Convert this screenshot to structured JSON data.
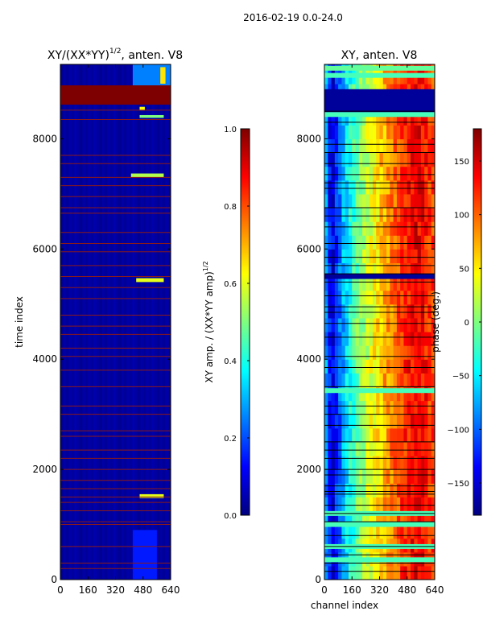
{
  "suptitle": "2016-02-19 0.0-24.0",
  "colors": {
    "jet": [
      "#00007f",
      "#0000ff",
      "#007fff",
      "#00ffff",
      "#7fff7f",
      "#ffff00",
      "#ff7f00",
      "#ff0000",
      "#7f0000"
    ],
    "gap_line": "#8b1a1a",
    "black": "#000000"
  },
  "chart_data": [
    {
      "type": "heatmap",
      "title_main": "XY/(XX*YY)",
      "title_exp": "1/2",
      "title_suffix": ", anten. V8",
      "xlabel": "",
      "ylabel": "time index",
      "xlim": [
        0,
        640
      ],
      "ylim": [
        0,
        9350
      ],
      "xticks": [
        0,
        160,
        320,
        480,
        640
      ],
      "xtick_labels": [
        "0",
        "160",
        "320",
        "480",
        "640"
      ],
      "yticks": [
        0,
        2000,
        4000,
        6000,
        8000
      ],
      "ytick_labels": [
        "0",
        "2000",
        "4000",
        "6000",
        "8000"
      ],
      "colorbar": {
        "label_main": "XY amp. / (XX*YY amp)",
        "label_exp": "1/2",
        "range": [
          0,
          1
        ],
        "ticks": [
          0.0,
          0.2,
          0.4,
          0.6,
          0.8,
          1.0
        ],
        "tick_labels": [
          "0.0",
          "0.2",
          "0.4",
          "0.6",
          "0.8",
          "1.0"
        ]
      },
      "background_value": 0.02,
      "flagged_block": {
        "t0": 8620,
        "t1": 8970,
        "value": 1.0
      },
      "bright_features": [
        {
          "t0": 8950,
          "t1": 9350,
          "c0": 420,
          "c1": 640,
          "value": 0.25
        },
        {
          "t0": 9000,
          "t1": 9300,
          "c0": 580,
          "c1": 610,
          "value": 0.65
        },
        {
          "t0": 8520,
          "t1": 8580,
          "c0": 460,
          "c1": 490,
          "value": 0.62
        },
        {
          "t0": 8380,
          "t1": 8430,
          "c0": 460,
          "c1": 600,
          "value": 0.5
        },
        {
          "t0": 7300,
          "t1": 7370,
          "c0": 410,
          "c1": 600,
          "value": 0.55
        },
        {
          "t0": 5400,
          "t1": 5470,
          "c0": 440,
          "c1": 600,
          "value": 0.6
        },
        {
          "t0": 1480,
          "t1": 1550,
          "c0": 460,
          "c1": 600,
          "value": 0.6
        },
        {
          "t0": 0,
          "t1": 900,
          "c0": 420,
          "c1": 560,
          "value": 0.15
        }
      ],
      "gap_lines": [
        8520,
        8350,
        7700,
        7550,
        7300,
        7150,
        6950,
        6750,
        6650,
        6300,
        6100,
        5950,
        5700,
        5500,
        5300,
        5100,
        4800,
        4600,
        4450,
        4200,
        4050,
        3800,
        3500,
        3150,
        3000,
        2700,
        2600,
        2350,
        2200,
        2000,
        1800,
        1650,
        1500,
        1400,
        1250,
        1050,
        1000,
        600,
        300,
        200
      ]
    },
    {
      "type": "heatmap",
      "title": "XY, anten. V8",
      "xlabel": "channel index",
      "ylabel": "",
      "xlim": [
        0,
        640
      ],
      "ylim": [
        0,
        9350
      ],
      "xticks": [
        0,
        160,
        320,
        480,
        640
      ],
      "xtick_labels": [
        "0",
        "160",
        "320",
        "480",
        "640"
      ],
      "yticks": [
        0,
        2000,
        4000,
        6000,
        8000
      ],
      "ytick_labels": [
        "0",
        "2000",
        "4000",
        "6000",
        "8000"
      ],
      "colorbar": {
        "label": "phase (deg.)",
        "range": [
          -180,
          180
        ],
        "ticks": [
          -150,
          -100,
          -50,
          0,
          50,
          100,
          150
        ],
        "tick_labels": [
          "−150",
          "−100",
          "−50",
          "0",
          "50",
          "100",
          "150"
        ]
      },
      "phase_profile_channels": [
        0,
        40,
        80,
        120,
        160,
        200,
        240,
        280,
        320,
        360,
        400,
        440,
        480,
        520,
        560,
        600,
        640
      ],
      "phase_profile_deg": [
        -60,
        -150,
        -110,
        -60,
        -30,
        0,
        20,
        40,
        60,
        80,
        95,
        110,
        125,
        140,
        140,
        120,
        110
      ],
      "flagged_band": {
        "t0": 8400,
        "t1": 8900,
        "value": -170
      },
      "uniform_rows": [
        {
          "t": 9150,
          "value": -20
        },
        {
          "t": 9280,
          "value": -10
        },
        {
          "t": 8440,
          "value": -20
        },
        {
          "t": 5500,
          "value": -170
        },
        {
          "t": 3430,
          "value": -20
        },
        {
          "t": 1200,
          "value": -20
        },
        {
          "t": 1000,
          "value": -20
        },
        {
          "t": 600,
          "value": -20
        },
        {
          "t": 360,
          "value": -20
        }
      ],
      "gap_lines": [
        8500,
        8300,
        7900,
        7750,
        7550,
        7350,
        7200,
        7100,
        6750,
        6600,
        6400,
        6100,
        5850,
        5700,
        5550,
        5400,
        5150,
        4950,
        4850,
        4650,
        4400,
        4050,
        3850,
        3500,
        3150,
        3000,
        2800,
        2500,
        2350,
        2200,
        2000,
        1900,
        1700,
        1600,
        1550,
        1350,
        1200,
        1050,
        800,
        600,
        450,
        300,
        150
      ]
    }
  ]
}
